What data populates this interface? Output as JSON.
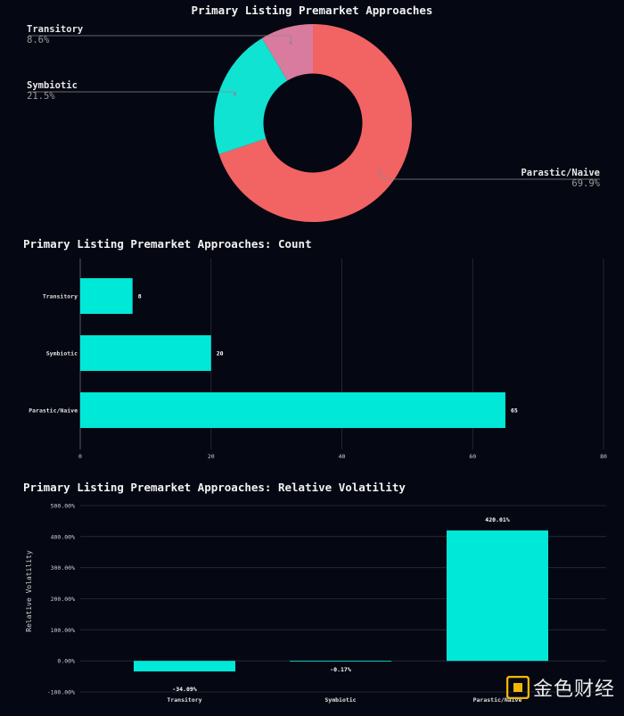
{
  "chart_data": [
    {
      "type": "pie",
      "title": "Primary Listing Premarket Approaches",
      "slices": [
        {
          "label": "Parastic/Naive",
          "value": 69.9,
          "pct_text": "69.9%",
          "color": "#f26363"
        },
        {
          "label": "Symbiotic",
          "value": 21.5,
          "pct_text": "21.5%",
          "color": "#10e3d2"
        },
        {
          "label": "Transitory",
          "value": 8.6,
          "pct_text": "8.6%",
          "color": "#d87b9e"
        }
      ],
      "hole": 0.5
    },
    {
      "type": "bar",
      "orientation": "horizontal",
      "title": "Primary Listing Premarket Approaches: Count",
      "categories": [
        "Transitory",
        "Symbiotic",
        "Parastic/Naive"
      ],
      "values": [
        8,
        20,
        65
      ],
      "value_labels": [
        "8",
        "20",
        "65"
      ],
      "xlim": [
        0,
        80
      ],
      "xticks": [
        "0",
        "20",
        "40",
        "60",
        "80"
      ],
      "xtick_values": [
        0,
        20,
        40,
        60,
        80
      ],
      "color": "#00e8d7"
    },
    {
      "type": "bar",
      "title": "Primary Listing Premarket Approaches: Relative Volatility",
      "ylabel": "Relative Volatility",
      "categories": [
        "Transitory",
        "Symbiotic",
        "Parastic/Naive"
      ],
      "values": [
        -34.09,
        -0.17,
        420.01
      ],
      "value_labels": [
        "-34.09%",
        "-0.17%",
        "420.01%"
      ],
      "ylim": [
        -100,
        500
      ],
      "yticks": [
        "-100.00%",
        "0.00%",
        "100.00%",
        "200.00%",
        "300.00%",
        "400.00%",
        "500.00%"
      ],
      "ytick_values": [
        -100,
        0,
        100,
        200,
        300,
        400,
        500
      ],
      "color": "#00e8d7"
    }
  ],
  "watermark": {
    "text": "金色财经",
    "logo_icon": "golden-square-logo-icon",
    "color": "#f2b705"
  }
}
